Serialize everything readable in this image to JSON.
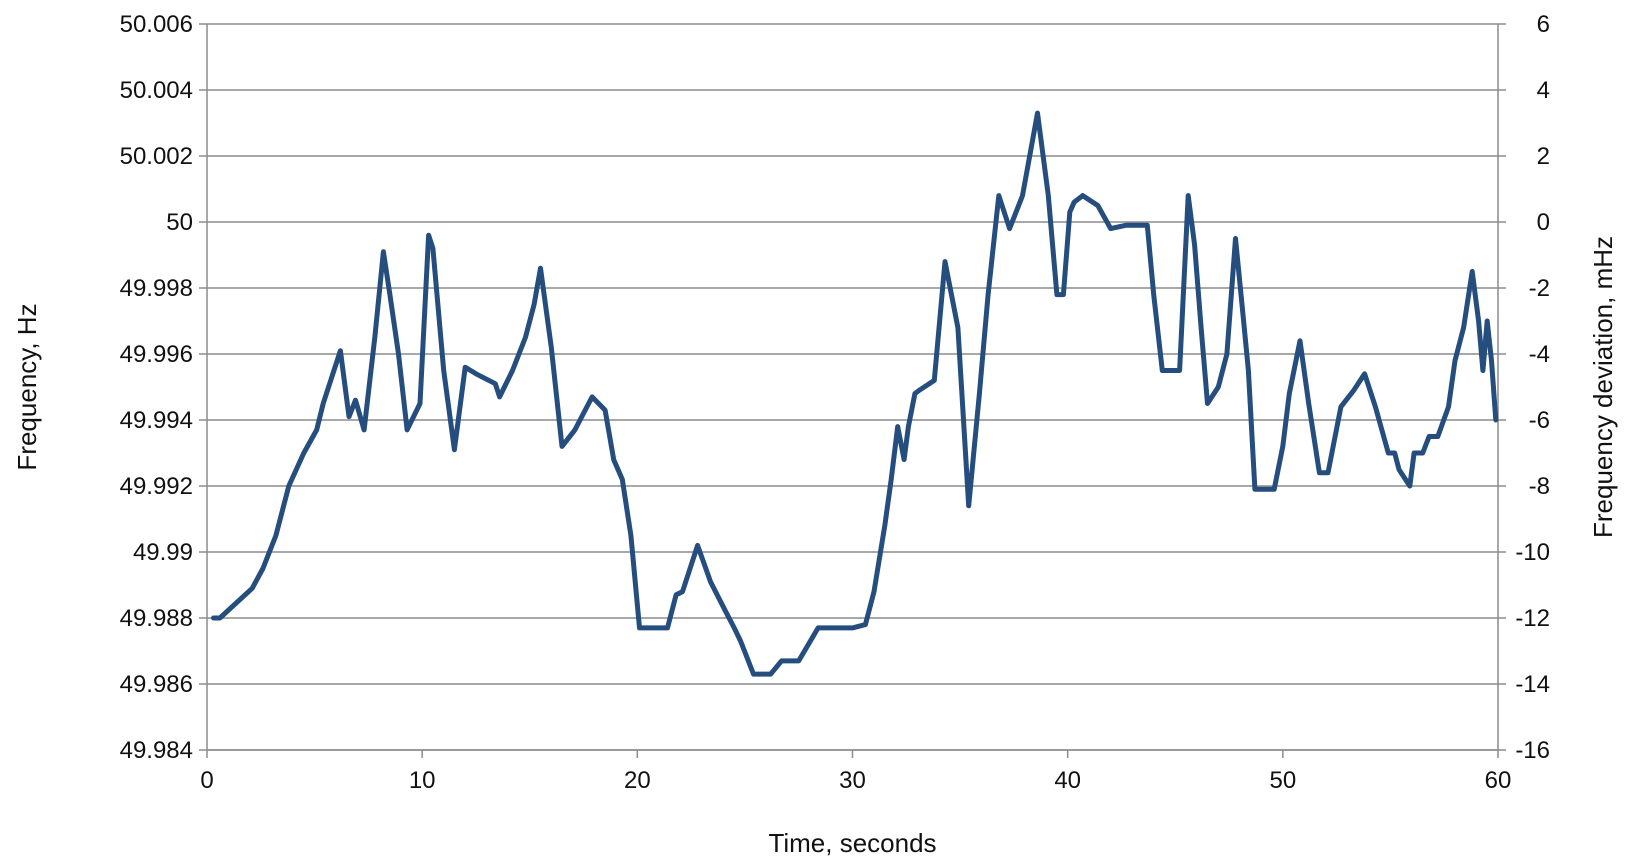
{
  "chart_data": {
    "type": "line",
    "title": "",
    "xlabel": "Time, seconds",
    "ylabel": "Frequency, Hz",
    "y2label": "Frequency deviation, mHz",
    "xlim": [
      0,
      60
    ],
    "ylim": [
      49.984,
      50.006
    ],
    "y2lim": [
      -16,
      6
    ],
    "grid": true,
    "legend": "none",
    "x_ticks": [
      "0",
      "10",
      "20",
      "30",
      "40",
      "50",
      "60"
    ],
    "x_tick_values": [
      0,
      10,
      20,
      30,
      40,
      50,
      60
    ],
    "y_ticks": [
      "49.984",
      "49.986",
      "49.988",
      "49.99",
      "49.992",
      "49.994",
      "49.996",
      "49.998",
      "50",
      "50.002",
      "50.004",
      "50.006"
    ],
    "y_tick_values": [
      49.984,
      49.986,
      49.988,
      49.99,
      49.992,
      49.994,
      49.996,
      49.998,
      50.0,
      50.002,
      50.004,
      50.006
    ],
    "y2_ticks": [
      "-16",
      "-14",
      "-12",
      "-10",
      "-8",
      "-6",
      "-4",
      "-2",
      "0",
      "2",
      "4",
      "6"
    ],
    "y2_tick_values": [
      -16,
      -14,
      -12,
      -10,
      -8,
      -6,
      -4,
      -2,
      0,
      2,
      4,
      6
    ],
    "series": [
      {
        "color": "#254d7e",
        "x": [
          0.3,
          0.6,
          2.1,
          2.6,
          3.2,
          3.8,
          4.5,
          5.1,
          5.4,
          6.2,
          6.6,
          6.9,
          7.3,
          7.8,
          8.2,
          8.5,
          8.9,
          9.3,
          9.9,
          10.3,
          10.5,
          11.0,
          11.5,
          12.0,
          12.5,
          13.4,
          13.6,
          14.2,
          14.8,
          15.2,
          15.5,
          16.0,
          16.5,
          17.1,
          17.9,
          18.5,
          18.9,
          19.3,
          19.7,
          20.1,
          20.3,
          20.6,
          21.4,
          21.8,
          22.1,
          22.8,
          23.4,
          24.1,
          24.5,
          24.8,
          25.4,
          25.7,
          26.2,
          26.7,
          27.5,
          28.4,
          28.6,
          29.5,
          30.0,
          30.6,
          31.0,
          31.5,
          31.8,
          32.1,
          32.4,
          32.6,
          32.9,
          33.1,
          33.8,
          34.3,
          34.9,
          35.4,
          35.9,
          36.3,
          36.8,
          37.3,
          37.9,
          38.6,
          39.1,
          39.5,
          39.8,
          40.1,
          40.3,
          40.7,
          41.4,
          42.0,
          42.7,
          43.4,
          43.7,
          44.0,
          44.4,
          44.9,
          45.2,
          45.6,
          45.9,
          46.2,
          46.5,
          47.0,
          47.4,
          47.8,
          48.1,
          48.4,
          48.7,
          49.0,
          49.6,
          50.0,
          50.3,
          50.8,
          51.2,
          51.7,
          52.1,
          52.7,
          53.3,
          53.8,
          54.3,
          54.9,
          55.2,
          55.4,
          55.9,
          56.1,
          56.5,
          56.8,
          57.2,
          57.7,
          58.0,
          58.4,
          58.8,
          59.1,
          59.3,
          59.5,
          59.7,
          59.9
        ],
        "y": [
          49.988,
          49.988,
          49.9889,
          49.9895,
          49.9905,
          49.992,
          49.993,
          49.9937,
          49.9945,
          49.9961,
          49.9941,
          49.9946,
          49.9937,
          49.9965,
          49.9991,
          49.9978,
          49.996,
          49.9937,
          49.9945,
          49.9996,
          49.9992,
          49.9955,
          49.9931,
          49.9956,
          49.9954,
          49.9951,
          49.9947,
          49.9955,
          49.9965,
          49.9975,
          49.9986,
          49.9962,
          49.9932,
          49.9937,
          49.9947,
          49.9943,
          49.9928,
          49.9922,
          49.9905,
          49.9877,
          49.9877,
          49.9877,
          49.9877,
          49.9887,
          49.9888,
          49.9902,
          49.9891,
          49.9882,
          49.9877,
          49.9873,
          49.9863,
          49.9863,
          49.9863,
          49.9867,
          49.9867,
          49.9877,
          49.9877,
          49.9877,
          49.9877,
          49.9878,
          49.9888,
          49.9908,
          49.9922,
          49.9938,
          49.9928,
          49.9938,
          49.9948,
          49.9949,
          49.9952,
          49.9988,
          49.9968,
          49.9914,
          49.9948,
          49.9978,
          50.0008,
          49.9998,
          50.0008,
          50.0033,
          50.0008,
          49.9978,
          49.9978,
          50.0003,
          50.0006,
          50.0008,
          50.0005,
          49.9998,
          49.9999,
          49.9999,
          49.9999,
          49.9978,
          49.9955,
          49.9955,
          49.9955,
          50.0008,
          49.9993,
          49.9968,
          49.9945,
          49.995,
          49.996,
          49.9995,
          49.9975,
          49.9955,
          49.9919,
          49.9919,
          49.9919,
          49.9932,
          49.9948,
          49.9964,
          49.9945,
          49.9924,
          49.9924,
          49.9944,
          49.9949,
          49.9954,
          49.9944,
          49.993,
          49.993,
          49.9925,
          49.992,
          49.993,
          49.993,
          49.9935,
          49.9935,
          49.9944,
          49.9958,
          49.9968,
          49.9985,
          49.997,
          49.9955,
          49.997,
          49.9958,
          49.994
        ]
      }
    ]
  }
}
